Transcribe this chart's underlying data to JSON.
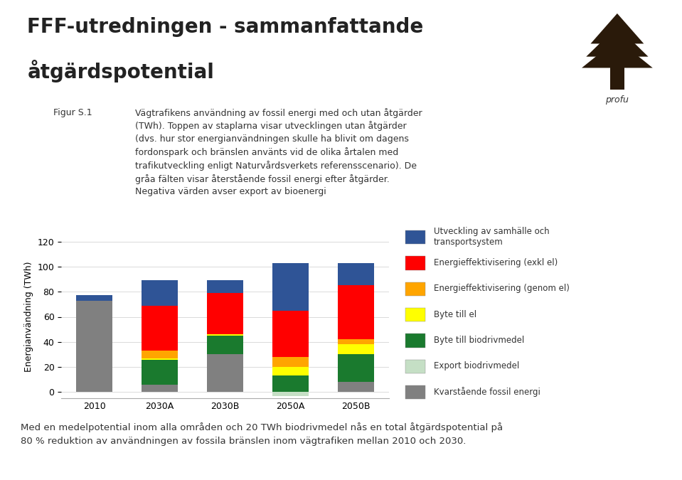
{
  "categories": [
    "2010",
    "2030A",
    "2030B",
    "2050A",
    "2050B"
  ],
  "series": [
    {
      "name": "Kvarstående fossil energi",
      "color": "#808080",
      "values": [
        73,
        6,
        30,
        0,
        8
      ]
    },
    {
      "name": "Export biodrivmedel",
      "color": "#c5dfc5",
      "values": [
        0,
        0,
        0,
        -3,
        0
      ]
    },
    {
      "name": "Byte till biodrivmedel",
      "color": "#1a7a2e",
      "values": [
        0,
        20,
        15,
        13,
        22
      ]
    },
    {
      "name": "Byte till el",
      "color": "#ffff00",
      "values": [
        0,
        1,
        1,
        7,
        8
      ]
    },
    {
      "name": "Energieffektivisering (genom el)",
      "color": "#ffa500",
      "values": [
        0,
        6,
        0,
        8,
        4
      ]
    },
    {
      "name": "Energieffektivisering (exkl el)",
      "color": "#ff0000",
      "values": [
        0,
        36,
        33,
        37,
        43
      ]
    },
    {
      "name": "Utveckling av samhälle och\ntransportsystem",
      "color": "#2f5496",
      "values": [
        4,
        20,
        10,
        38,
        18
      ]
    }
  ],
  "ylabel": "Energianvändning (TWh)",
  "ylim": [
    -5,
    125
  ],
  "yticks": [
    0,
    20,
    40,
    60,
    80,
    100,
    120
  ],
  "title_line1": "FFF-utredningen - sammanfattande",
  "title_line2": "åtgärdspotential",
  "fig_label": "Figur S.1",
  "description": "Vägtrafikens användning av fossil energi med och utan åtgärder\n(TWh). Toppen av staplarna visar utvecklingen utan åtgärder\n(dvs. hur stor energianvändningen skulle ha blivit om dagens\nfordonspark och bränslen använts vid de olika årtalen med\ntrafikutveckling enligt Naturvårdsverkets referensscenario). De\ngråa fälten visar återstående fossil energi efter åtgärder.\nNegativa värden avser export av bioenergi",
  "footer": "Med en medelpotential inom alla områden och 20 TWh biodrivmedel nås en total åtgärdspotential på\n80 % reduktion av användningen av fossila bränslen inom vägtrafiken mellan 2010 och 2030.",
  "background_color": "#ffffff",
  "header_bg": "#e8eef5",
  "bar_width": 0.55
}
